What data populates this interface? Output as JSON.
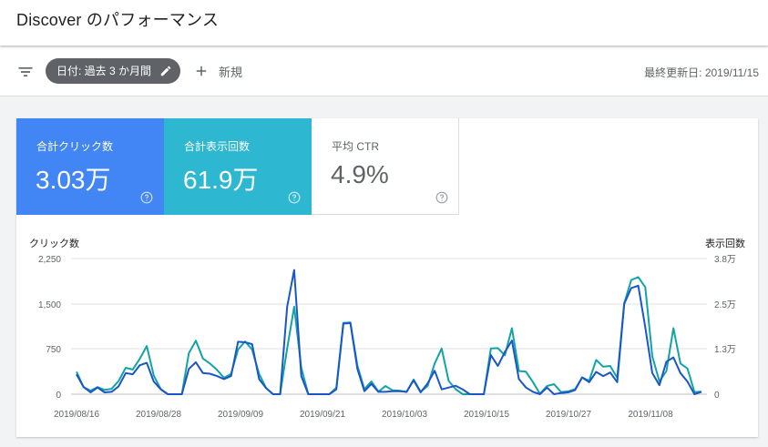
{
  "header": {
    "title": "Discover のパフォーマンス"
  },
  "toolbar": {
    "filter_icon": "filter-icon",
    "date_chip": "日付: 過去 3 か月間",
    "new_label": "新規",
    "last_updated": "最終更新日: 2019/11/15"
  },
  "metrics": [
    {
      "label": "合計クリック数",
      "value": "3.03万",
      "color": "#4285f4"
    },
    {
      "label": "合計表示回数",
      "value": "61.9万",
      "color": "#2eb7d0"
    },
    {
      "label": "平均 CTR",
      "value": "4.9%",
      "color": "#ffffff"
    }
  ],
  "chart_data": {
    "type": "line",
    "ylabel_left": "クリック数",
    "ylabel_right": "表示回数",
    "left_ticks": [
      "2,250",
      "1,500",
      "750",
      "0"
    ],
    "right_ticks": [
      "3.8万",
      "2.5万",
      "1.3万",
      "0"
    ],
    "x_ticks": [
      "2019/08/16",
      "2019/08/28",
      "2019/09/09",
      "2019/09/21",
      "2019/10/03",
      "2019/10/15",
      "2019/10/27",
      "2019/11/08"
    ],
    "ylim_left": [
      0,
      2250
    ],
    "ylim_right": [
      0,
      38000
    ],
    "series": [
      {
        "name": "クリック数",
        "color": "#1a56c9",
        "values": [
          330,
          120,
          30,
          110,
          30,
          40,
          130,
          350,
          330,
          480,
          520,
          210,
          80,
          0,
          0,
          0,
          420,
          530,
          350,
          340,
          300,
          250,
          300,
          870,
          860,
          830,
          250,
          100,
          0,
          0,
          1450,
          2060,
          300,
          0,
          0,
          0,
          0,
          80,
          1170,
          1180,
          420,
          50,
          170,
          40,
          40,
          50,
          50,
          40,
          230,
          30,
          180,
          390,
          80,
          110,
          140,
          80,
          0,
          0,
          0,
          650,
          470,
          700,
          890,
          250,
          110,
          40,
          0,
          110,
          0,
          20,
          30,
          70,
          280,
          200,
          370,
          300,
          360,
          200,
          1500,
          1760,
          1800,
          1110,
          350,
          150,
          540,
          610,
          350,
          210,
          0,
          40
        ]
      },
      {
        "name": "表示回数",
        "color": "#12a4a4",
        "values": [
          6300,
          2000,
          1000,
          2000,
          1200,
          1500,
          3700,
          7400,
          6900,
          9900,
          13500,
          5200,
          1400,
          0,
          0,
          0,
          11500,
          15000,
          10000,
          8600,
          6800,
          4600,
          5700,
          12500,
          14800,
          12500,
          5700,
          1700,
          0,
          0,
          12800,
          24500,
          7400,
          0,
          0,
          0,
          0,
          1800,
          20000,
          20100,
          8000,
          1400,
          3600,
          700,
          2300,
          1100,
          1000,
          600,
          4100,
          700,
          2300,
          8600,
          12800,
          3700,
          1400,
          0,
          0,
          0,
          0,
          12800,
          12900,
          10900,
          18500,
          6500,
          6300,
          3400,
          100,
          2300,
          2800,
          600,
          800,
          1400,
          4700,
          3800,
          9600,
          7700,
          7900,
          4600,
          25500,
          32000,
          32800,
          30000,
          10600,
          3600,
          6500,
          18500,
          8600,
          7200,
          600,
          700
        ]
      }
    ]
  }
}
